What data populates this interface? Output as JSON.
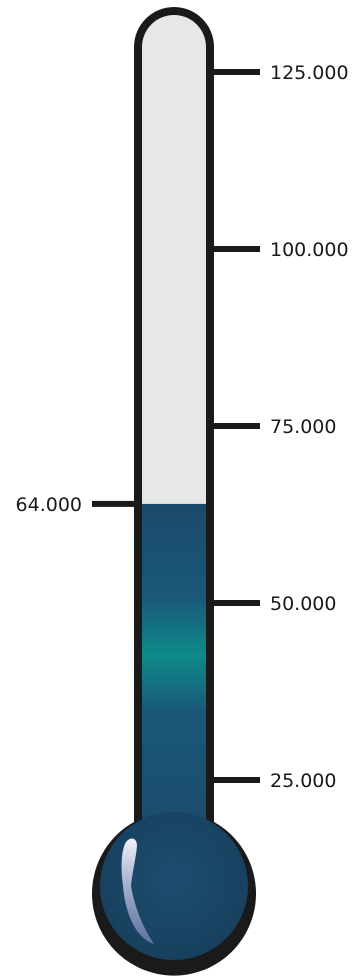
{
  "thermometer": {
    "scale_labels": [
      "25.000",
      "50.000",
      "75.000",
      "100.000",
      "125.000"
    ],
    "current_label": "64.000",
    "current_value": 64000,
    "scale_max": 125000,
    "colors": {
      "empty": "#e6e8e6",
      "fill": "#1b4a6b",
      "fill_highlight": "#0e8a8a",
      "outline": "#1a1a1a"
    }
  }
}
